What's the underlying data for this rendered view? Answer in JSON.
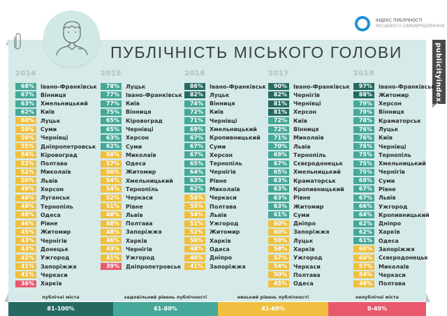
{
  "header": {
    "title": "ПУБЛІЧНІСТЬ МІСЬКОГО ГОЛОВИ",
    "logo_line1": "ІНДЕКС ПУБЛІЧНОСТІ",
    "logo_line2": "МІСЦЕВОГО САМОВРЯДУВАННЯ",
    "side_tab": "publicityindex.org",
    "icons": [
      "paperclip-icon",
      "mayor-avatar-icon",
      "logo-ring-icon"
    ]
  },
  "colors": {
    "public_81_100": "#256a62",
    "satisfactory_61_80": "#45a898",
    "low_41_60": "#f0bf3f",
    "nonpublic_0_40": "#e8596e",
    "panel_bg": "#d6ebe9",
    "logo_blue": "#1e90d2"
  },
  "legend": [
    {
      "label": "публічні міста",
      "range": "81-100%"
    },
    {
      "label": "задовільний рівень публічності",
      "range": "61-80%"
    },
    {
      "label": "низький рівень публічності",
      "range": "41-60%"
    },
    {
      "label": "непублічні міста",
      "range": "0-40%"
    }
  ],
  "columns": [
    {
      "year": "2014",
      "rows": [
        {
          "pct": "68%",
          "city": "Івано-Франківськ"
        },
        {
          "pct": "67%",
          "city": "Вінниця"
        },
        {
          "pct": "63%",
          "city": "Хмельницький"
        },
        {
          "pct": "62%",
          "city": "Київ"
        },
        {
          "pct": "60%",
          "city": "Луцьк"
        },
        {
          "pct": "59%",
          "city": "Суми"
        },
        {
          "pct": "56%",
          "city": "Чернівці"
        },
        {
          "pct": "55%",
          "city": "Дніпропетровськ"
        },
        {
          "pct": "54%",
          "city": "Кіровоград"
        },
        {
          "pct": "52%",
          "city": "Полтава"
        },
        {
          "pct": "52%",
          "city": "Миколаїв"
        },
        {
          "pct": "50%",
          "city": "Львів"
        },
        {
          "pct": "49%",
          "city": "Херсон"
        },
        {
          "pct": "48%",
          "city": "Луганськ"
        },
        {
          "pct": "48%",
          "city": "Тернопіль"
        },
        {
          "pct": "48%",
          "city": "Одеса"
        },
        {
          "pct": "46%",
          "city": "Рівне"
        },
        {
          "pct": "45%",
          "city": "Житомир"
        },
        {
          "pct": "43%",
          "city": "Чернігів"
        },
        {
          "pct": "43%",
          "city": "Донецьк"
        },
        {
          "pct": "42%",
          "city": "Ужгород"
        },
        {
          "pct": "41%",
          "city": "Запоріжжя"
        },
        {
          "pct": "41%",
          "city": "Черкаси"
        },
        {
          "pct": "36%",
          "city": "Харків"
        }
      ]
    },
    {
      "year": "2015",
      "rows": [
        {
          "pct": "78%",
          "city": "Луцьк"
        },
        {
          "pct": "77%",
          "city": "Івано-Франківськ"
        },
        {
          "pct": "77%",
          "city": "Київ"
        },
        {
          "pct": "75%",
          "city": "Вінниця"
        },
        {
          "pct": "65%",
          "city": "Кіровоград"
        },
        {
          "pct": "65%",
          "city": "Чернівці"
        },
        {
          "pct": "63%",
          "city": "Херсон"
        },
        {
          "pct": "62%",
          "city": "Суми"
        },
        {
          "pct": "58%",
          "city": "Миколаїв"
        },
        {
          "pct": "57%",
          "city": "Одеса"
        },
        {
          "pct": "56%",
          "city": "Житомир"
        },
        {
          "pct": "54%",
          "city": "Хмельницький"
        },
        {
          "pct": "54%",
          "city": "Тернопіль"
        },
        {
          "pct": "52%",
          "city": "Черкаси"
        },
        {
          "pct": "51%",
          "city": "Рівне"
        },
        {
          "pct": "48%",
          "city": "Львів"
        },
        {
          "pct": "48%",
          "city": "Полтава"
        },
        {
          "pct": "48%",
          "city": "Запоріжжя"
        },
        {
          "pct": "46%",
          "city": "Харків"
        },
        {
          "pct": "43%",
          "city": "Чернігів"
        },
        {
          "pct": "41%",
          "city": "Ужгород"
        },
        {
          "pct": "39%",
          "city": "Дніпропетровськ"
        }
      ]
    },
    {
      "year": "2016",
      "rows": [
        {
          "pct": "86%",
          "city": "Івано-Франківськ"
        },
        {
          "pct": "82%",
          "city": "Луцьк"
        },
        {
          "pct": "74%",
          "city": "Вінниця"
        },
        {
          "pct": "72%",
          "city": "Київ"
        },
        {
          "pct": "71%",
          "city": "Чернівці"
        },
        {
          "pct": "69%",
          "city": "Хмельницький"
        },
        {
          "pct": "67%",
          "city": "Кропивницький"
        },
        {
          "pct": "67%",
          "city": "Суми"
        },
        {
          "pct": "67%",
          "city": "Херсон"
        },
        {
          "pct": "65%",
          "city": "Тернопіль"
        },
        {
          "pct": "64%",
          "city": "Чернігів"
        },
        {
          "pct": "63%",
          "city": "Рівне"
        },
        {
          "pct": "62%",
          "city": "Миколаїв"
        },
        {
          "pct": "56%",
          "city": "Черкаси"
        },
        {
          "pct": "55%",
          "city": "Полтава"
        },
        {
          "pct": "54%",
          "city": "Львів"
        },
        {
          "pct": "51%",
          "city": "Ужгород"
        },
        {
          "pct": "52%",
          "city": "Житомир"
        },
        {
          "pct": "50%",
          "city": "Харків"
        },
        {
          "pct": "48%",
          "city": "Одеса"
        },
        {
          "pct": "46%",
          "city": "Дніпро"
        },
        {
          "pct": "41%",
          "city": "Запоріжжя"
        }
      ]
    },
    {
      "year": "2017",
      "rows": [
        {
          "pct": "90%",
          "city": "Івано-Франківськ"
        },
        {
          "pct": "82%",
          "city": "Чернігів"
        },
        {
          "pct": "81%",
          "city": "Чернівці"
        },
        {
          "pct": "81%",
          "city": "Херсон"
        },
        {
          "pct": "72%",
          "city": "Київ"
        },
        {
          "pct": "72%",
          "city": "Вінниця"
        },
        {
          "pct": "71%",
          "city": "Миколаїв"
        },
        {
          "pct": "70%",
          "city": "Львів"
        },
        {
          "pct": "69%",
          "city": "Тернопіль"
        },
        {
          "pct": "67%",
          "city": "Сєвєродонецьк"
        },
        {
          "pct": "65%",
          "city": "Хмельницький"
        },
        {
          "pct": "63%",
          "city": "Краматорськ"
        },
        {
          "pct": "63%",
          "city": "Кропивницький"
        },
        {
          "pct": "63%",
          "city": "Рівне"
        },
        {
          "pct": "63%",
          "city": "Житомир"
        },
        {
          "pct": "61%",
          "city": "Суми"
        },
        {
          "pct": "60%",
          "city": "Дніпро"
        },
        {
          "pct": "60%",
          "city": "Запоріжжя"
        },
        {
          "pct": "59%",
          "city": "Луцьк"
        },
        {
          "pct": "58%",
          "city": "Харків"
        },
        {
          "pct": "57%",
          "city": "Ужгород"
        },
        {
          "pct": "54%",
          "city": "Черкаси"
        },
        {
          "pct": "50%",
          "city": "Полтава"
        },
        {
          "pct": "45%",
          "city": "Одеса"
        }
      ]
    },
    {
      "year": "2018",
      "rows": [
        {
          "pct": "97%",
          "city": "Івано-Франківськ"
        },
        {
          "pct": "88%",
          "city": "Житомир"
        },
        {
          "pct": "79%",
          "city": "Херсон"
        },
        {
          "pct": "79%",
          "city": "Вінниця"
        },
        {
          "pct": "78%",
          "city": "Краматорськ"
        },
        {
          "pct": "76%",
          "city": "Луцьк"
        },
        {
          "pct": "76%",
          "city": "Київ"
        },
        {
          "pct": "76%",
          "city": "Чернівці"
        },
        {
          "pct": "75%",
          "city": "Тернопіль"
        },
        {
          "pct": "75%",
          "city": "Хмельницький"
        },
        {
          "pct": "75%",
          "city": "Чернігів"
        },
        {
          "pct": "68%",
          "city": "Суми"
        },
        {
          "pct": "67%",
          "city": "Рівне"
        },
        {
          "pct": "67%",
          "city": "Львів"
        },
        {
          "pct": "66%",
          "city": "Ужгород"
        },
        {
          "pct": "64%",
          "city": "Кропивницький"
        },
        {
          "pct": "62%",
          "city": "Дніпро"
        },
        {
          "pct": "62%",
          "city": "Харків"
        },
        {
          "pct": "61%",
          "city": "Одеса"
        },
        {
          "pct": "60%",
          "city": "Запоріжжя"
        },
        {
          "pct": "60%",
          "city": "Сєвєродонецьк"
        },
        {
          "pct": "57%",
          "city": "Миколаїв"
        },
        {
          "pct": "54%",
          "city": "Черкаси"
        },
        {
          "pct": "46%",
          "city": "Полтава"
        }
      ]
    }
  ],
  "chart_data": {
    "type": "table",
    "title": "ПУБЛІЧНІСТЬ МІСЬКОГО ГОЛОВИ",
    "unit": "%",
    "categories": [
      "2014",
      "2015",
      "2016",
      "2017",
      "2018"
    ],
    "color_scale": [
      {
        "range": [
          81,
          100
        ],
        "label": "публічні міста",
        "color": "#256a62"
      },
      {
        "range": [
          61,
          80
        ],
        "label": "задовільний рівень публічності",
        "color": "#45a898"
      },
      {
        "range": [
          41,
          60
        ],
        "label": "низький рівень публічності",
        "color": "#f0bf3f"
      },
      {
        "range": [
          0,
          40
        ],
        "label": "непублічні міста",
        "color": "#e8596e"
      }
    ],
    "series": [
      {
        "name": "2014",
        "cities": [
          "Івано-Франківськ",
          "Вінниця",
          "Хмельницький",
          "Київ",
          "Луцьк",
          "Суми",
          "Чернівці",
          "Дніпропетровськ",
          "Кіровоград",
          "Полтава",
          "Миколаїв",
          "Львів",
          "Херсон",
          "Луганськ",
          "Тернопіль",
          "Одеса",
          "Рівне",
          "Житомир",
          "Чернігів",
          "Донецьк",
          "Ужгород",
          "Запоріжжя",
          "Черкаси",
          "Харків"
        ],
        "values": [
          68,
          67,
          63,
          62,
          60,
          59,
          56,
          55,
          54,
          52,
          52,
          50,
          49,
          48,
          48,
          48,
          46,
          45,
          43,
          43,
          42,
          41,
          41,
          36
        ]
      },
      {
        "name": "2015",
        "cities": [
          "Луцьк",
          "Івано-Франківськ",
          "Київ",
          "Вінниця",
          "Кіровоград",
          "Чернівці",
          "Херсон",
          "Суми",
          "Миколаїв",
          "Одеса",
          "Житомир",
          "Хмельницький",
          "Тернопіль",
          "Черкаси",
          "Рівне",
          "Львів",
          "Полтава",
          "Запоріжжя",
          "Харків",
          "Чернігів",
          "Ужгород",
          "Дніпропетровськ"
        ],
        "values": [
          78,
          77,
          77,
          75,
          65,
          65,
          63,
          62,
          58,
          57,
          56,
          54,
          54,
          52,
          51,
          48,
          48,
          48,
          46,
          43,
          41,
          39
        ]
      },
      {
        "name": "2016",
        "cities": [
          "Івано-Франківськ",
          "Луцьк",
          "Вінниця",
          "Київ",
          "Чернівці",
          "Хмельницький",
          "Кропивницький",
          "Суми",
          "Херсон",
          "Тернопіль",
          "Чернігів",
          "Рівне",
          "Миколаїв",
          "Черкаси",
          "Полтава",
          "Львів",
          "Ужгород",
          "Житомир",
          "Харків",
          "Одеса",
          "Дніпро",
          "Запоріжжя"
        ],
        "values": [
          86,
          82,
          74,
          72,
          71,
          69,
          67,
          67,
          67,
          65,
          64,
          63,
          62,
          56,
          55,
          54,
          51,
          52,
          50,
          48,
          46,
          41
        ]
      },
      {
        "name": "2017",
        "cities": [
          "Івано-Франківськ",
          "Чернігів",
          "Чернівці",
          "Херсон",
          "Київ",
          "Вінниця",
          "Миколаїв",
          "Львів",
          "Тернопіль",
          "Сєвєродонецьк",
          "Хмельницький",
          "Краматорськ",
          "Кропивницький",
          "Рівне",
          "Житомир",
          "Суми",
          "Дніпро",
          "Запоріжжя",
          "Луцьк",
          "Харків",
          "Ужгород",
          "Черкаси",
          "Полтава",
          "Одеса"
        ],
        "values": [
          90,
          82,
          81,
          81,
          72,
          72,
          71,
          70,
          69,
          67,
          65,
          63,
          63,
          63,
          63,
          61,
          60,
          60,
          59,
          58,
          57,
          54,
          50,
          45
        ]
      },
      {
        "name": "2018",
        "cities": [
          "Івано-Франківськ",
          "Житомир",
          "Херсон",
          "Вінниця",
          "Краматорськ",
          "Луцьк",
          "Київ",
          "Чернівці",
          "Тернопіль",
          "Хмельницький",
          "Чернігів",
          "Суми",
          "Рівне",
          "Львів",
          "Ужгород",
          "Кропивницький",
          "Дніпро",
          "Харків",
          "Одеса",
          "Запоріжжя",
          "Сєвєродонецьк",
          "Миколаїв",
          "Черкаси",
          "Полтава"
        ],
        "values": [
          97,
          88,
          79,
          79,
          78,
          76,
          76,
          76,
          75,
          75,
          75,
          68,
          67,
          67,
          66,
          64,
          62,
          62,
          61,
          60,
          60,
          57,
          54,
          46
        ]
      }
    ]
  }
}
